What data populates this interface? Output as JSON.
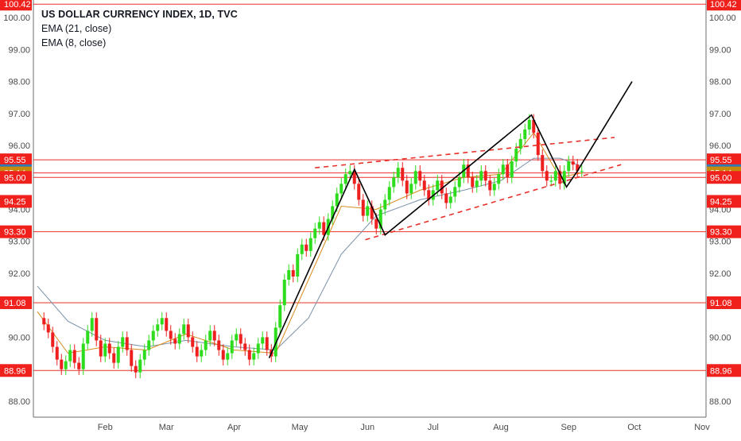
{
  "chart_data": {
    "type": "candlestick",
    "title": "US DOLLAR CURRENCY INDEX, 1D, TVC",
    "legend": [
      "EMA (21, close)",
      "EMA (8, close)"
    ],
    "ylim": [
      87.5,
      100.55
    ],
    "y_ticks": [
      "88.00",
      "90.00",
      "92.00",
      "93.00",
      "94.00",
      "96.00",
      "97.00",
      "98.00",
      "99.00",
      "100.00"
    ],
    "x_month_ticks": [
      "Feb",
      "Mar",
      "Apr",
      "May",
      "Jun",
      "Jul",
      "Aug",
      "Sep",
      "Oct",
      "Nov"
    ],
    "month_start_days": [
      0,
      31,
      59,
      90,
      120,
      151,
      181,
      212,
      243,
      273,
      304
    ],
    "horizontal_levels": [
      {
        "value": 100.42,
        "label": "100.42"
      },
      {
        "value": 95.55,
        "label": "95.55"
      },
      {
        "value": 95.21,
        "label": "95.21",
        "line": false,
        "badge_color": "#3179b5"
      },
      {
        "value": 95.14,
        "label": "95.14",
        "badge_color": "#c88a0a"
      },
      {
        "value": 95.0,
        "label": "95.00"
      },
      {
        "value": 94.25,
        "label": "94.25",
        "line": false
      },
      {
        "value": 93.3,
        "label": "93.30"
      },
      {
        "value": 91.08,
        "label": "91.08"
      },
      {
        "value": 88.96,
        "label": "88.96"
      }
    ],
    "pattern_line": [
      [
        "2018-04-17",
        89.35
      ],
      [
        "2018-05-26",
        95.25
      ],
      [
        "2018-06-09",
        93.2
      ],
      [
        "2018-08-15",
        96.95
      ],
      [
        "2018-08-31",
        94.7
      ],
      [
        "2018-09-05",
        95.2
      ],
      [
        "2018-09-30",
        98.0
      ]
    ],
    "channel_upper": [
      [
        "2018-05-08",
        95.3
      ],
      [
        "2018-09-22",
        96.25
      ]
    ],
    "channel_lower": [
      [
        "2018-05-31",
        93.05
      ],
      [
        "2018-09-25",
        95.4
      ]
    ],
    "series": [
      {
        "name": "US DOLLAR CURRENCY INDEX",
        "x": [
          "2018-01-04",
          "2018-01-06",
          "2018-01-08",
          "2018-01-10",
          "2018-01-12",
          "2018-01-14",
          "2018-01-16",
          "2018-01-18",
          "2018-01-20",
          "2018-01-22",
          "2018-01-24",
          "2018-01-26",
          "2018-01-28",
          "2018-01-30",
          "2018-02-01",
          "2018-02-03",
          "2018-02-05",
          "2018-02-07",
          "2018-02-09",
          "2018-02-11",
          "2018-02-13",
          "2018-02-15",
          "2018-02-17",
          "2018-02-19",
          "2018-02-21",
          "2018-02-23",
          "2018-02-25",
          "2018-02-27",
          "2018-03-01",
          "2018-03-03",
          "2018-03-05",
          "2018-03-07",
          "2018-03-09",
          "2018-03-11",
          "2018-03-13",
          "2018-03-15",
          "2018-03-17",
          "2018-03-19",
          "2018-03-21",
          "2018-03-23",
          "2018-03-25",
          "2018-03-27",
          "2018-03-29",
          "2018-03-31",
          "2018-04-02",
          "2018-04-04",
          "2018-04-06",
          "2018-04-08",
          "2018-04-10",
          "2018-04-12",
          "2018-04-14",
          "2018-04-16",
          "2018-04-18",
          "2018-04-20",
          "2018-04-22",
          "2018-04-24",
          "2018-04-26",
          "2018-04-28",
          "2018-04-30",
          "2018-05-02",
          "2018-05-04",
          "2018-05-06",
          "2018-05-08",
          "2018-05-10",
          "2018-05-12",
          "2018-05-14",
          "2018-05-16",
          "2018-05-18",
          "2018-05-20",
          "2018-05-22",
          "2018-05-24",
          "2018-05-26",
          "2018-05-28",
          "2018-05-30",
          "2018-06-01",
          "2018-06-03",
          "2018-06-05",
          "2018-06-07",
          "2018-06-09",
          "2018-06-11",
          "2018-06-13",
          "2018-06-15",
          "2018-06-17",
          "2018-06-19",
          "2018-06-21",
          "2018-06-23",
          "2018-06-25",
          "2018-06-27",
          "2018-06-29",
          "2018-07-01",
          "2018-07-03",
          "2018-07-05",
          "2018-07-07",
          "2018-07-09",
          "2018-07-11",
          "2018-07-13",
          "2018-07-15",
          "2018-07-17",
          "2018-07-19",
          "2018-07-21",
          "2018-07-23",
          "2018-07-25",
          "2018-07-27",
          "2018-07-29",
          "2018-07-31",
          "2018-08-02",
          "2018-08-04",
          "2018-08-06",
          "2018-08-08",
          "2018-08-10",
          "2018-08-12",
          "2018-08-14",
          "2018-08-16",
          "2018-08-18",
          "2018-08-20",
          "2018-08-22",
          "2018-08-24",
          "2018-08-26",
          "2018-08-28",
          "2018-08-30",
          "2018-09-01",
          "2018-09-03",
          "2018-09-05",
          "2018-09-07"
        ],
        "close": [
          90.4,
          90.15,
          89.7,
          89.3,
          89.0,
          89.25,
          89.6,
          89.2,
          89.0,
          89.8,
          90.2,
          90.6,
          89.9,
          89.4,
          89.8,
          89.5,
          89.2,
          89.7,
          90.0,
          89.6,
          89.1,
          88.9,
          89.3,
          89.6,
          89.9,
          90.2,
          90.4,
          90.6,
          90.2,
          89.95,
          89.8,
          90.1,
          90.4,
          90.0,
          89.7,
          89.4,
          89.6,
          89.9,
          90.2,
          89.9,
          89.6,
          89.3,
          89.5,
          89.9,
          90.1,
          89.8,
          89.6,
          89.3,
          89.5,
          89.8,
          90.0,
          89.6,
          89.4,
          90.3,
          91.0,
          91.8,
          92.1,
          91.9,
          92.6,
          92.9,
          92.7,
          93.1,
          93.4,
          93.6,
          93.2,
          93.7,
          94.1,
          94.5,
          94.8,
          95.1,
          95.2,
          94.8,
          94.3,
          93.8,
          94.1,
          93.7,
          93.4,
          94.0,
          94.3,
          94.7,
          95.0,
          95.3,
          94.9,
          94.5,
          94.8,
          95.2,
          94.9,
          94.6,
          94.3,
          94.6,
          94.9,
          94.5,
          94.2,
          94.4,
          94.7,
          95.0,
          95.4,
          95.0,
          94.7,
          94.9,
          95.2,
          94.9,
          94.6,
          94.8,
          95.1,
          95.4,
          95.0,
          95.5,
          95.9,
          96.2,
          96.5,
          96.8,
          96.4,
          95.7,
          95.2,
          94.9,
          94.9,
          95.2,
          94.8,
          95.2,
          95.5,
          95.4,
          95.2,
          95.2
        ],
        "open": [
          90.6,
          90.4,
          90.15,
          89.7,
          89.3,
          89.0,
          89.25,
          89.6,
          89.2,
          89.0,
          89.8,
          90.2,
          90.6,
          89.9,
          89.4,
          89.8,
          89.5,
          89.2,
          89.7,
          90.0,
          89.6,
          89.1,
          88.9,
          89.3,
          89.6,
          89.9,
          90.2,
          90.4,
          90.6,
          90.2,
          89.95,
          89.8,
          90.1,
          90.4,
          90.0,
          89.7,
          89.4,
          89.6,
          89.9,
          90.2,
          89.9,
          89.6,
          89.3,
          89.5,
          89.9,
          90.1,
          89.8,
          89.6,
          89.3,
          89.5,
          89.8,
          90.0,
          89.6,
          89.4,
          90.3,
          91.0,
          91.8,
          92.1,
          91.9,
          92.6,
          92.9,
          92.7,
          93.1,
          93.4,
          93.6,
          93.2,
          93.7,
          94.1,
          94.5,
          94.8,
          95.1,
          95.2,
          94.8,
          94.3,
          93.8,
          94.1,
          93.7,
          93.4,
          94.0,
          94.3,
          94.7,
          95.0,
          95.3,
          94.9,
          94.5,
          94.8,
          95.2,
          94.9,
          94.6,
          94.3,
          94.6,
          94.9,
          94.5,
          94.2,
          94.4,
          94.7,
          95.0,
          95.4,
          95.0,
          94.7,
          94.9,
          95.2,
          94.9,
          94.6,
          94.8,
          95.1,
          95.4,
          95.0,
          95.5,
          95.9,
          96.2,
          96.5,
          96.8,
          96.4,
          95.7,
          95.2,
          94.9,
          94.9,
          95.2,
          94.8,
          95.2,
          95.5,
          95.4,
          95.2
        ]
      },
      {
        "name": "EMA (21, close)",
        "color": "#7a90a8",
        "x": [
          "2018-01-01",
          "2018-01-15",
          "2018-02-01",
          "2018-02-20",
          "2018-03-10",
          "2018-04-01",
          "2018-04-20",
          "2018-05-05",
          "2018-05-20",
          "2018-06-05",
          "2018-06-25",
          "2018-07-15",
          "2018-08-01",
          "2018-08-16",
          "2018-08-28",
          "2018-09-07"
        ],
        "y": [
          91.6,
          90.5,
          89.9,
          89.7,
          89.9,
          89.7,
          89.6,
          90.6,
          92.6,
          93.8,
          94.3,
          94.6,
          94.9,
          95.6,
          95.6,
          95.35
        ]
      },
      {
        "name": "EMA (8, close)",
        "color": "#d98a1c",
        "x": [
          "2018-01-01",
          "2018-01-15",
          "2018-02-01",
          "2018-02-20",
          "2018-03-10",
          "2018-04-01",
          "2018-04-20",
          "2018-05-05",
          "2018-05-20",
          "2018-06-05",
          "2018-06-25",
          "2018-07-15",
          "2018-08-01",
          "2018-08-16",
          "2018-08-28",
          "2018-09-07"
        ],
        "y": [
          90.8,
          89.5,
          89.7,
          89.6,
          90.1,
          89.6,
          89.5,
          91.8,
          94.1,
          94.0,
          94.6,
          95.0,
          95.1,
          96.4,
          95.0,
          95.14
        ]
      }
    ]
  }
}
